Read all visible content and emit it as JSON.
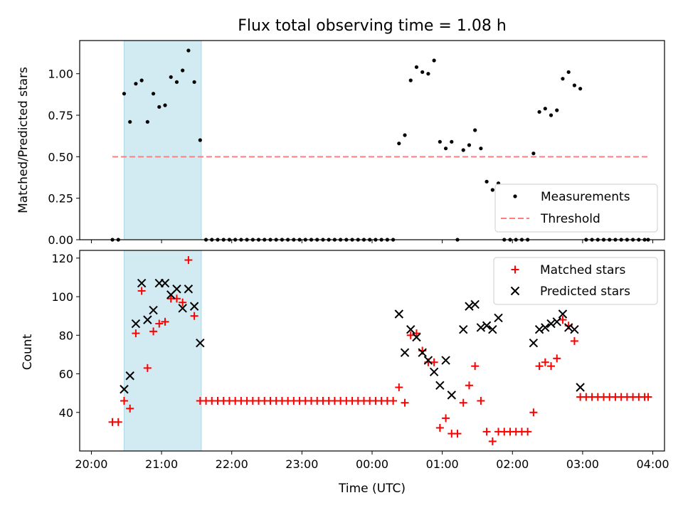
{
  "figure": {
    "title": "Flux total observing time = 1.08 h",
    "xlabel": "Time (UTC)"
  },
  "colors": {
    "measurement": "#000000",
    "threshold": "#ff7f7f",
    "matched": "#ff0000",
    "predicted": "#000000",
    "highlight": "#add8e6"
  },
  "chart_data": [
    {
      "type": "scatter",
      "title": "Flux total observing time = 1.08 h",
      "xlabel": "Time (UTC)",
      "ylabel": "Matched/Predicted stars",
      "ylim": [
        0,
        1.2
      ],
      "yticks": [
        "0.00",
        "0.25",
        "0.50",
        "0.75",
        "1.00"
      ],
      "highlight_span": {
        "start": "20:28",
        "end": "21:34"
      },
      "threshold": {
        "name": "Threshold",
        "y": 0.5,
        "x_start": "20:18",
        "x_end": "03:56"
      },
      "legend": {
        "position": "bottom-right",
        "entries": [
          "Measurements",
          "Threshold"
        ]
      },
      "series": [
        {
          "name": "Measurements",
          "points": [
            [
              "20:18",
              0
            ],
            [
              "20:23",
              0
            ],
            [
              "20:28",
              0.88
            ],
            [
              "20:33",
              0.71
            ],
            [
              "20:38",
              0.94
            ],
            [
              "20:43",
              0.96
            ],
            [
              "20:48",
              0.71
            ],
            [
              "20:53",
              0.88
            ],
            [
              "20:58",
              0.8
            ],
            [
              "21:03",
              0.81
            ],
            [
              "21:08",
              0.98
            ],
            [
              "21:13",
              0.95
            ],
            [
              "21:18",
              1.02
            ],
            [
              "21:23",
              1.14
            ],
            [
              "21:28",
              0.95
            ],
            [
              "21:33",
              0.6
            ],
            [
              "21:38",
              0
            ],
            [
              "21:43",
              0
            ],
            [
              "21:48",
              0
            ],
            [
              "21:53",
              0
            ],
            [
              "21:58",
              0
            ],
            [
              "22:03",
              0
            ],
            [
              "22:08",
              0
            ],
            [
              "22:13",
              0
            ],
            [
              "22:18",
              0
            ],
            [
              "22:23",
              0
            ],
            [
              "22:28",
              0
            ],
            [
              "22:33",
              0
            ],
            [
              "22:38",
              0
            ],
            [
              "22:43",
              0
            ],
            [
              "22:48",
              0
            ],
            [
              "22:53",
              0
            ],
            [
              "22:58",
              0
            ],
            [
              "23:03",
              0
            ],
            [
              "23:08",
              0
            ],
            [
              "23:13",
              0
            ],
            [
              "23:18",
              0
            ],
            [
              "23:23",
              0
            ],
            [
              "23:28",
              0
            ],
            [
              "23:33",
              0
            ],
            [
              "23:38",
              0
            ],
            [
              "23:43",
              0
            ],
            [
              "23:48",
              0
            ],
            [
              "23:53",
              0
            ],
            [
              "23:58",
              0
            ],
            [
              "00:03",
              0
            ],
            [
              "00:08",
              0
            ],
            [
              "00:13",
              0
            ],
            [
              "00:18",
              0
            ],
            [
              "00:23",
              0.58
            ],
            [
              "00:28",
              0.63
            ],
            [
              "00:33",
              0.96
            ],
            [
              "00:38",
              1.04
            ],
            [
              "00:43",
              1.01
            ],
            [
              "00:48",
              1.0
            ],
            [
              "00:53",
              1.08
            ],
            [
              "00:58",
              0.59
            ],
            [
              "01:03",
              0.55
            ],
            [
              "01:08",
              0.59
            ],
            [
              "01:13",
              0
            ],
            [
              "01:18",
              0.54
            ],
            [
              "01:23",
              0.57
            ],
            [
              "01:28",
              0.66
            ],
            [
              "01:33",
              0.55
            ],
            [
              "01:38",
              0.35
            ],
            [
              "01:43",
              0.3
            ],
            [
              "01:48",
              0.34
            ],
            [
              "01:53",
              0
            ],
            [
              "01:58",
              0
            ],
            [
              "02:03",
              0
            ],
            [
              "02:08",
              0
            ],
            [
              "02:13",
              0
            ],
            [
              "02:18",
              0.52
            ],
            [
              "02:23",
              0.77
            ],
            [
              "02:28",
              0.79
            ],
            [
              "02:33",
              0.75
            ],
            [
              "02:38",
              0.78
            ],
            [
              "02:43",
              0.97
            ],
            [
              "02:48",
              1.01
            ],
            [
              "02:53",
              0.93
            ],
            [
              "02:58",
              0.91
            ],
            [
              "03:03",
              0
            ],
            [
              "03:08",
              0
            ],
            [
              "03:13",
              0
            ],
            [
              "03:18",
              0
            ],
            [
              "03:23",
              0
            ],
            [
              "03:28",
              0
            ],
            [
              "03:33",
              0
            ],
            [
              "03:38",
              0
            ],
            [
              "03:43",
              0
            ],
            [
              "03:48",
              0
            ],
            [
              "03:53",
              0
            ],
            [
              "03:56",
              0
            ]
          ]
        }
      ]
    },
    {
      "type": "scatter",
      "xlabel": "Time (UTC)",
      "ylabel": "Count",
      "ylim": [
        20,
        124
      ],
      "yticks": [
        "40",
        "60",
        "80",
        "100",
        "120"
      ],
      "xticks": [
        "20:00",
        "21:00",
        "22:00",
        "23:00",
        "00:00",
        "01:00",
        "02:00",
        "03:00",
        "04:00"
      ],
      "highlight_span": {
        "start": "20:28",
        "end": "21:34"
      },
      "legend": {
        "position": "top-right",
        "entries": [
          "Matched stars",
          "Predicted stars"
        ]
      },
      "series": [
        {
          "name": "Matched stars",
          "points": [
            [
              "20:18",
              35
            ],
            [
              "20:23",
              35
            ],
            [
              "20:28",
              46
            ],
            [
              "20:33",
              42
            ],
            [
              "20:38",
              81
            ],
            [
              "20:43",
              103
            ],
            [
              "20:48",
              63
            ],
            [
              "20:53",
              82
            ],
            [
              "20:58",
              86
            ],
            [
              "21:03",
              87
            ],
            [
              "21:08",
              99
            ],
            [
              "21:13",
              99
            ],
            [
              "21:18",
              97
            ],
            [
              "21:23",
              119
            ],
            [
              "21:28",
              90
            ],
            [
              "21:33",
              46
            ],
            [
              "21:38",
              46
            ],
            [
              "21:43",
              46
            ],
            [
              "21:48",
              46
            ],
            [
              "21:53",
              46
            ],
            [
              "21:58",
              46
            ],
            [
              "22:03",
              46
            ],
            [
              "22:08",
              46
            ],
            [
              "22:13",
              46
            ],
            [
              "22:18",
              46
            ],
            [
              "22:23",
              46
            ],
            [
              "22:28",
              46
            ],
            [
              "22:33",
              46
            ],
            [
              "22:38",
              46
            ],
            [
              "22:43",
              46
            ],
            [
              "22:48",
              46
            ],
            [
              "22:53",
              46
            ],
            [
              "22:58",
              46
            ],
            [
              "23:03",
              46
            ],
            [
              "23:08",
              46
            ],
            [
              "23:13",
              46
            ],
            [
              "23:18",
              46
            ],
            [
              "23:23",
              46
            ],
            [
              "23:28",
              46
            ],
            [
              "23:33",
              46
            ],
            [
              "23:38",
              46
            ],
            [
              "23:43",
              46
            ],
            [
              "23:48",
              46
            ],
            [
              "23:53",
              46
            ],
            [
              "23:58",
              46
            ],
            [
              "00:03",
              46
            ],
            [
              "00:08",
              46
            ],
            [
              "00:13",
              46
            ],
            [
              "00:18",
              46
            ],
            [
              "00:23",
              53
            ],
            [
              "00:28",
              45
            ],
            [
              "00:33",
              80
            ],
            [
              "00:38",
              81
            ],
            [
              "00:43",
              72
            ],
            [
              "00:48",
              66
            ],
            [
              "00:53",
              66
            ],
            [
              "00:58",
              32
            ],
            [
              "01:03",
              37
            ],
            [
              "01:08",
              29
            ],
            [
              "01:13",
              29
            ],
            [
              "01:18",
              45
            ],
            [
              "01:23",
              54
            ],
            [
              "01:28",
              64
            ],
            [
              "01:33",
              46
            ],
            [
              "01:38",
              30
            ],
            [
              "01:43",
              25
            ],
            [
              "01:48",
              30
            ],
            [
              "01:53",
              30
            ],
            [
              "01:58",
              30
            ],
            [
              "02:03",
              30
            ],
            [
              "02:08",
              30
            ],
            [
              "02:13",
              30
            ],
            [
              "02:18",
              40
            ],
            [
              "02:23",
              64
            ],
            [
              "02:28",
              66
            ],
            [
              "02:33",
              64
            ],
            [
              "02:38",
              68
            ],
            [
              "02:43",
              88
            ],
            [
              "02:48",
              85
            ],
            [
              "02:53",
              77
            ],
            [
              "02:58",
              48
            ],
            [
              "03:03",
              48
            ],
            [
              "03:08",
              48
            ],
            [
              "03:13",
              48
            ],
            [
              "03:18",
              48
            ],
            [
              "03:23",
              48
            ],
            [
              "03:28",
              48
            ],
            [
              "03:33",
              48
            ],
            [
              "03:38",
              48
            ],
            [
              "03:43",
              48
            ],
            [
              "03:48",
              48
            ],
            [
              "03:53",
              48
            ],
            [
              "03:56",
              48
            ]
          ]
        },
        {
          "name": "Predicted stars",
          "points": [
            [
              "20:28",
              52
            ],
            [
              "20:33",
              59
            ],
            [
              "20:38",
              86
            ],
            [
              "20:43",
              107
            ],
            [
              "20:48",
              88
            ],
            [
              "20:53",
              93
            ],
            [
              "20:58",
              107
            ],
            [
              "21:03",
              107
            ],
            [
              "21:08",
              101
            ],
            [
              "21:13",
              104
            ],
            [
              "21:18",
              94
            ],
            [
              "21:23",
              104
            ],
            [
              "21:28",
              95
            ],
            [
              "21:33",
              76
            ],
            [
              "00:23",
              91
            ],
            [
              "00:28",
              71
            ],
            [
              "00:33",
              83
            ],
            [
              "00:38",
              79
            ],
            [
              "00:43",
              71
            ],
            [
              "00:48",
              67
            ],
            [
              "00:53",
              61
            ],
            [
              "00:58",
              54
            ],
            [
              "01:03",
              67
            ],
            [
              "01:08",
              49
            ],
            [
              "01:18",
              83
            ],
            [
              "01:23",
              95
            ],
            [
              "01:28",
              96
            ],
            [
              "01:33",
              84
            ],
            [
              "01:38",
              85
            ],
            [
              "01:43",
              83
            ],
            [
              "01:48",
              89
            ],
            [
              "02:18",
              76
            ],
            [
              "02:23",
              83
            ],
            [
              "02:28",
              84
            ],
            [
              "02:33",
              86
            ],
            [
              "02:38",
              87
            ],
            [
              "02:43",
              91
            ],
            [
              "02:48",
              84
            ],
            [
              "02:53",
              83
            ],
            [
              "02:58",
              53
            ]
          ]
        }
      ]
    }
  ]
}
